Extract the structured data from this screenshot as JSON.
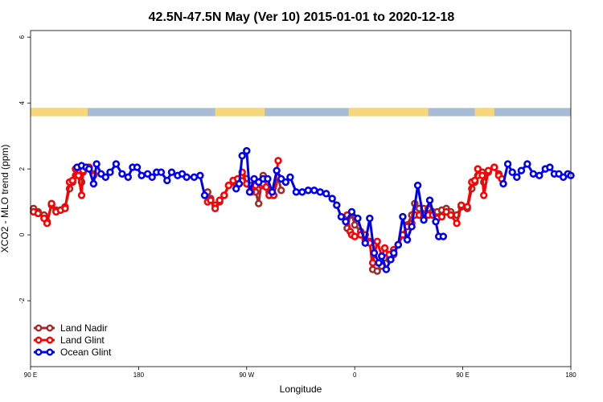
{
  "chart_data": {
    "type": "line",
    "title": "42.5N-47.5N May (Ver 10)   2015-01-01 to 2020-12-18",
    "xlabel": "Longitude",
    "ylabel": "XCO2 - MLO trend (ppm)",
    "xlim": [
      -90,
      270
    ],
    "ylim": [
      -4,
      6.2
    ],
    "x_ticks": [
      {
        "value": -90,
        "label": "90 E"
      },
      {
        "value": -18,
        "label": "180"
      },
      {
        "value": 54,
        "label": "90 W"
      },
      {
        "value": 126,
        "label": "0"
      },
      {
        "value": 198,
        "label": "90 E"
      },
      {
        "value": 270,
        "label": "180"
      }
    ],
    "y_ticks": [
      {
        "value": -2,
        "label": "-2"
      },
      {
        "value": 0,
        "label": "0"
      },
      {
        "value": 2,
        "label": "2"
      },
      {
        "value": 4,
        "label": "4"
      },
      {
        "value": 6,
        "label": "6"
      }
    ],
    "legend_position": "bottom-left",
    "land_ocean_band": {
      "y_range": [
        3.6,
        3.85
      ],
      "land_color": "#f6d77a",
      "ocean_color": "#a9bcd6",
      "land_segments": [
        [
          -90,
          -52
        ],
        [
          33,
          66
        ],
        [
          122,
          175
        ],
        [
          206,
          219
        ]
      ]
    },
    "series": [
      {
        "name": "Land Nadir",
        "color": "#a52a2a",
        "points": [
          [
            -88,
            0.8
          ],
          [
            -85,
            0.7
          ],
          [
            -81,
            0.6
          ],
          [
            -79,
            0.4
          ],
          [
            -76,
            0.9
          ],
          [
            -73,
            0.75
          ],
          [
            -70,
            0.75
          ],
          [
            -67,
            0.85
          ],
          [
            -64,
            1.4
          ],
          [
            -62,
            1.6
          ],
          [
            -60,
            1.8
          ],
          [
            -58,
            1.9
          ],
          [
            -56,
            1.6
          ],
          [
            -55,
            1.9
          ],
          [
            -51,
            2.05
          ],
          [
            -48,
            1.85
          ],
          [
            28,
            1.3
          ],
          [
            30,
            1.1
          ],
          [
            33,
            0.9
          ],
          [
            36,
            1.0
          ],
          [
            39,
            1.2
          ],
          [
            42,
            1.5
          ],
          [
            45,
            1.6
          ],
          [
            48,
            1.6
          ],
          [
            51,
            1.8
          ],
          [
            54,
            1.7
          ],
          [
            57,
            1.5
          ],
          [
            60,
            1.3
          ],
          [
            62,
            0.95
          ],
          [
            64,
            1.65
          ],
          [
            65,
            1.8
          ],
          [
            67,
            1.6
          ],
          [
            69,
            1.3
          ],
          [
            72,
            1.2
          ],
          [
            75,
            1.75
          ],
          [
            77,
            1.35
          ],
          [
            121,
            0.2
          ],
          [
            123,
            0.6
          ],
          [
            124,
            0.65
          ],
          [
            126,
            0.3
          ],
          [
            130,
            0.1
          ],
          [
            133,
            0.0
          ],
          [
            136,
            -0.2
          ],
          [
            138,
            -1.05
          ],
          [
            141,
            -1.1
          ],
          [
            144,
            -0.95
          ],
          [
            146,
            -0.7
          ],
          [
            149,
            -0.75
          ],
          [
            152,
            -0.6
          ],
          [
            155,
            -0.3
          ],
          [
            158,
            0.0
          ],
          [
            161,
            0.3
          ],
          [
            164,
            0.6
          ],
          [
            166,
            0.95
          ],
          [
            169,
            0.8
          ],
          [
            172,
            0.8
          ],
          [
            175,
            0.8
          ],
          [
            178,
            0.7
          ],
          [
            181,
            0.7
          ],
          [
            184,
            0.75
          ],
          [
            187,
            0.8
          ],
          [
            190,
            0.7
          ],
          [
            194,
            0.6
          ],
          [
            197,
            0.85
          ],
          [
            201,
            0.8
          ],
          [
            204,
            1.4
          ],
          [
            206,
            1.6
          ],
          [
            208,
            1.8
          ],
          [
            211,
            1.9
          ],
          [
            212,
            1.6
          ],
          [
            215,
            1.9
          ],
          [
            219,
            2.05
          ],
          [
            222,
            1.85
          ],
          [
            224,
            1.7
          ]
        ]
      },
      {
        "name": "Land Glint",
        "color": "#ff0000",
        "points": [
          [
            -88,
            0.7
          ],
          [
            -85,
            0.65
          ],
          [
            -81,
            0.5
          ],
          [
            -79,
            0.35
          ],
          [
            -76,
            0.95
          ],
          [
            -73,
            0.7
          ],
          [
            -70,
            0.75
          ],
          [
            -67,
            0.8
          ],
          [
            -64,
            1.6
          ],
          [
            -62,
            1.65
          ],
          [
            -60,
            2.0
          ],
          [
            -58,
            1.8
          ],
          [
            -56,
            1.2
          ],
          [
            -55,
            1.95
          ],
          [
            -51,
            2.05
          ],
          [
            -48,
            1.8
          ],
          [
            28,
            1.0
          ],
          [
            30,
            1.05
          ],
          [
            33,
            0.8
          ],
          [
            36,
            1.05
          ],
          [
            39,
            1.2
          ],
          [
            42,
            1.5
          ],
          [
            45,
            1.65
          ],
          [
            48,
            1.7
          ],
          [
            51,
            1.9
          ],
          [
            54,
            1.55
          ],
          [
            57,
            1.3
          ],
          [
            60,
            1.5
          ],
          [
            62,
            1.6
          ],
          [
            64,
            1.5
          ],
          [
            65,
            1.55
          ],
          [
            67,
            1.45
          ],
          [
            69,
            1.2
          ],
          [
            72,
            1.2
          ],
          [
            75,
            2.25
          ],
          [
            121,
            0.6
          ],
          [
            123,
            0.1
          ],
          [
            124,
            0.0
          ],
          [
            126,
            -0.05
          ],
          [
            130,
            0.0
          ],
          [
            133,
            -0.15
          ],
          [
            136,
            -0.25
          ],
          [
            138,
            -0.85
          ],
          [
            141,
            -0.2
          ],
          [
            144,
            -0.65
          ],
          [
            146,
            -0.4
          ],
          [
            149,
            -0.6
          ],
          [
            152,
            -0.45
          ],
          [
            155,
            -0.3
          ],
          [
            158,
            0.0
          ],
          [
            161,
            0.25
          ],
          [
            164,
            0.35
          ],
          [
            166,
            0.6
          ],
          [
            169,
            0.6
          ],
          [
            172,
            0.6
          ],
          [
            175,
            0.6
          ],
          [
            178,
            0.6
          ],
          [
            181,
            0.5
          ],
          [
            184,
            0.55
          ],
          [
            187,
            0.7
          ],
          [
            190,
            0.6
          ],
          [
            194,
            0.35
          ],
          [
            197,
            0.9
          ],
          [
            201,
            0.85
          ],
          [
            204,
            1.6
          ],
          [
            206,
            1.65
          ],
          [
            208,
            2.0
          ],
          [
            211,
            1.8
          ],
          [
            212,
            1.2
          ],
          [
            215,
            1.95
          ],
          [
            219,
            2.05
          ],
          [
            222,
            1.8
          ],
          [
            224,
            1.7
          ]
        ]
      },
      {
        "name": "Ocean Glint",
        "color": "#0000ee",
        "points": [
          [
            -59,
            2.05
          ],
          [
            -56,
            2.1
          ],
          [
            -53,
            2.05
          ],
          [
            -51,
            2.0
          ],
          [
            -48,
            1.55
          ],
          [
            -46,
            2.15
          ],
          [
            -43,
            1.85
          ],
          [
            -40,
            1.75
          ],
          [
            -37,
            1.9
          ],
          [
            -33,
            2.15
          ],
          [
            -29,
            1.85
          ],
          [
            -25,
            1.75
          ],
          [
            -22,
            2.05
          ],
          [
            -19,
            2.05
          ],
          [
            -16,
            1.8
          ],
          [
            -12,
            1.85
          ],
          [
            -9,
            1.75
          ],
          [
            -6,
            1.9
          ],
          [
            -3,
            1.9
          ],
          [
            1,
            1.65
          ],
          [
            4,
            1.9
          ],
          [
            8,
            1.8
          ],
          [
            11,
            1.85
          ],
          [
            14,
            1.75
          ],
          [
            19,
            1.75
          ],
          [
            23,
            1.8
          ],
          [
            26,
            1.2
          ],
          [
            47,
            1.4
          ],
          [
            49,
            1.55
          ],
          [
            51,
            2.4
          ],
          [
            54,
            2.55
          ],
          [
            56,
            1.3
          ],
          [
            59,
            1.7
          ],
          [
            62,
            1.6
          ],
          [
            65,
            1.7
          ],
          [
            68,
            1.7
          ],
          [
            71,
            1.3
          ],
          [
            74,
            1.95
          ],
          [
            77,
            1.7
          ],
          [
            80,
            1.6
          ],
          [
            83,
            1.75
          ],
          [
            87,
            1.3
          ],
          [
            91,
            1.3
          ],
          [
            95,
            1.35
          ],
          [
            99,
            1.35
          ],
          [
            103,
            1.3
          ],
          [
            107,
            1.25
          ],
          [
            111,
            1.1
          ],
          [
            114,
            0.9
          ],
          [
            117,
            0.55
          ],
          [
            120,
            0.4
          ],
          [
            124,
            0.7
          ],
          [
            128,
            0.5
          ],
          [
            133,
            -0.25
          ],
          [
            136,
            0.5
          ],
          [
            139,
            -0.55
          ],
          [
            142,
            -0.85
          ],
          [
            144,
            -0.65
          ],
          [
            147,
            -1.05
          ],
          [
            150,
            -0.75
          ],
          [
            152,
            -0.55
          ],
          [
            155,
            -0.3
          ],
          [
            158,
            0.55
          ],
          [
            161,
            -0.15
          ],
          [
            164,
            0.25
          ],
          [
            168,
            1.5
          ],
          [
            172,
            0.45
          ],
          [
            176,
            1.05
          ],
          [
            180,
            0.4
          ],
          [
            182,
            -0.05
          ],
          [
            185,
            -0.05
          ],
          [
            225,
            1.55
          ],
          [
            228,
            2.15
          ],
          [
            231,
            1.9
          ],
          [
            234,
            1.75
          ],
          [
            237,
            1.95
          ],
          [
            241,
            2.15
          ],
          [
            245,
            1.85
          ],
          [
            249,
            1.8
          ],
          [
            253,
            2.0
          ],
          [
            256,
            2.05
          ],
          [
            259,
            1.85
          ],
          [
            262,
            1.85
          ],
          [
            265,
            1.75
          ],
          [
            268,
            1.85
          ],
          [
            270,
            1.8
          ]
        ]
      }
    ]
  }
}
